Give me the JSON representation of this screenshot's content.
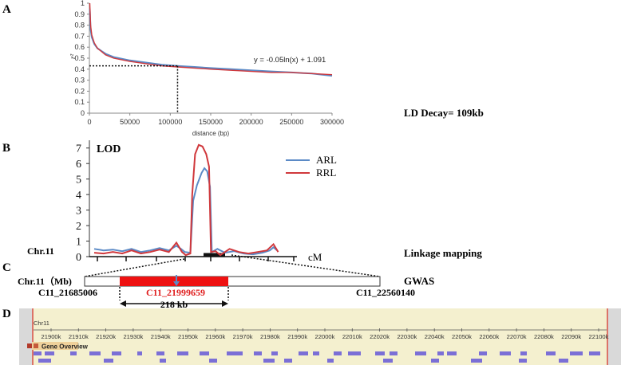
{
  "panels": {
    "a": {
      "letter": "A",
      "ylabel": "r²",
      "xlabel": "distance (bp)",
      "equation": "y = -0.05ln(x) + 1.091",
      "decay_text": "LD Decay= 109kb"
    },
    "b": {
      "letter": "B",
      "lod_label": "LOD",
      "chr_label": "Chr.11",
      "cm_label": "cM",
      "method_label": "Linkage mapping",
      "legend": [
        "ARL",
        "RRL"
      ]
    },
    "c": {
      "letter": "C",
      "chr_label": "Chr.11（Mb)",
      "method_label": "GWAS",
      "left_marker": "C11_21685006",
      "center_marker": "C11_21999659",
      "right_marker": "C11_22560140",
      "interval_label": "218 kb"
    },
    "d": {
      "letter": "D",
      "track_chr": "Chr11",
      "track_ticks": [
        "21900k",
        "21910k",
        "21920k",
        "21930k",
        "21940k",
        "21950k",
        "21960k",
        "21970k",
        "21980k",
        "21990k",
        "22000k",
        "22010k",
        "22020k",
        "22030k",
        "22040k",
        "22050k",
        "22060k",
        "22070k",
        "22080k",
        "22090k",
        "22100k"
      ],
      "gene_overview_label": "Gene Overview"
    }
  },
  "colors": {
    "arl": "#5b8ac6",
    "rrl": "#d0383c",
    "highlight": "#ee1111",
    "center_marker": "#e02020",
    "browser_bg": "#f4f0cf",
    "gene": "#7b6fd6",
    "track_frame": "#d03030"
  },
  "chart_data": [
    {
      "type": "line",
      "x_range": [
        0,
        300000
      ],
      "xticks": [
        0,
        50000,
        100000,
        150000,
        200000,
        250000,
        300000
      ],
      "ylim": [
        0,
        1
      ],
      "yticks": [
        0,
        0.1,
        0.2,
        0.3,
        0.4,
        0.5,
        0.6,
        0.7,
        0.8,
        0.9,
        1
      ],
      "fit": {
        "a": -0.05,
        "b": 1.091
      },
      "decay_threshold_r2": 0.43,
      "decay_distance": 109000,
      "series": [
        {
          "values": [
            [
              500,
              0.95
            ],
            [
              1500,
              0.76
            ],
            [
              3000,
              0.69
            ],
            [
              6000,
              0.63
            ],
            [
              10000,
              0.59
            ],
            [
              20000,
              0.54
            ],
            [
              30000,
              0.51
            ],
            [
              50000,
              0.48
            ],
            [
              70000,
              0.46
            ],
            [
              90000,
              0.44
            ],
            [
              109000,
              0.43
            ],
            [
              130000,
              0.42
            ],
            [
              150000,
              0.41
            ],
            [
              175000,
              0.4
            ],
            [
              200000,
              0.39
            ],
            [
              225000,
              0.38
            ],
            [
              250000,
              0.37
            ],
            [
              275000,
              0.36
            ],
            [
              300000,
              0.34
            ]
          ]
        },
        {
          "values": [
            [
              500,
              1.0
            ],
            [
              1500,
              0.8
            ],
            [
              3000,
              0.71
            ],
            [
              6000,
              0.64
            ],
            [
              10000,
              0.59
            ],
            [
              20000,
              0.53
            ],
            [
              30000,
              0.5
            ],
            [
              50000,
              0.47
            ],
            [
              70000,
              0.45
            ],
            [
              90000,
              0.43
            ],
            [
              109000,
              0.42
            ],
            [
              130000,
              0.41
            ],
            [
              150000,
              0.4
            ],
            [
              175000,
              0.39
            ],
            [
              200000,
              0.38
            ],
            [
              225000,
              0.37
            ],
            [
              250000,
              0.37
            ],
            [
              275000,
              0.36
            ],
            [
              300000,
              0.35
            ]
          ]
        }
      ]
    },
    {
      "type": "line",
      "ylim": [
        0,
        7.5
      ],
      "yticks": [
        0,
        1,
        2,
        3,
        4,
        5,
        6,
        7
      ],
      "x_range": [
        0,
        250
      ],
      "series": [
        {
          "name": "ARL",
          "values": [
            [
              0,
              0.5
            ],
            [
              10,
              0.4
            ],
            [
              20,
              0.45
            ],
            [
              30,
              0.35
            ],
            [
              40,
              0.5
            ],
            [
              50,
              0.3
            ],
            [
              60,
              0.4
            ],
            [
              70,
              0.55
            ],
            [
              80,
              0.4
            ],
            [
              88,
              0.7
            ],
            [
              93,
              0.5
            ],
            [
              97,
              0.3
            ],
            [
              103,
              0.25
            ],
            [
              106,
              3.6
            ],
            [
              110,
              4.6
            ],
            [
              115,
              5.4
            ],
            [
              118,
              5.7
            ],
            [
              121,
              5.5
            ],
            [
              124,
              4.5
            ],
            [
              126,
              0.3
            ],
            [
              132,
              0.5
            ],
            [
              140,
              0.25
            ],
            [
              150,
              0.35
            ],
            [
              160,
              0.2
            ],
            [
              170,
              0.15
            ],
            [
              180,
              0.25
            ],
            [
              188,
              0.4
            ],
            [
              192,
              0.6
            ],
            [
              196,
              0.4
            ]
          ]
        },
        {
          "name": "RRL",
          "values": [
            [
              0,
              0.25
            ],
            [
              10,
              0.2
            ],
            [
              20,
              0.3
            ],
            [
              30,
              0.2
            ],
            [
              40,
              0.4
            ],
            [
              50,
              0.2
            ],
            [
              60,
              0.3
            ],
            [
              70,
              0.45
            ],
            [
              80,
              0.3
            ],
            [
              88,
              0.9
            ],
            [
              91,
              0.6
            ],
            [
              94,
              0.3
            ],
            [
              98,
              0.1
            ],
            [
              103,
              0.2
            ],
            [
              105,
              4.0
            ],
            [
              108,
              6.6
            ],
            [
              112,
              7.2
            ],
            [
              116,
              7.1
            ],
            [
              120,
              6.6
            ],
            [
              123,
              5.8
            ],
            [
              125,
              0.3
            ],
            [
              130,
              0.35
            ],
            [
              135,
              0.1
            ],
            [
              145,
              0.5
            ],
            [
              155,
              0.3
            ],
            [
              165,
              0.2
            ],
            [
              175,
              0.3
            ],
            [
              185,
              0.4
            ],
            [
              192,
              0.8
            ],
            [
              197,
              0.3
            ]
          ]
        }
      ]
    }
  ]
}
